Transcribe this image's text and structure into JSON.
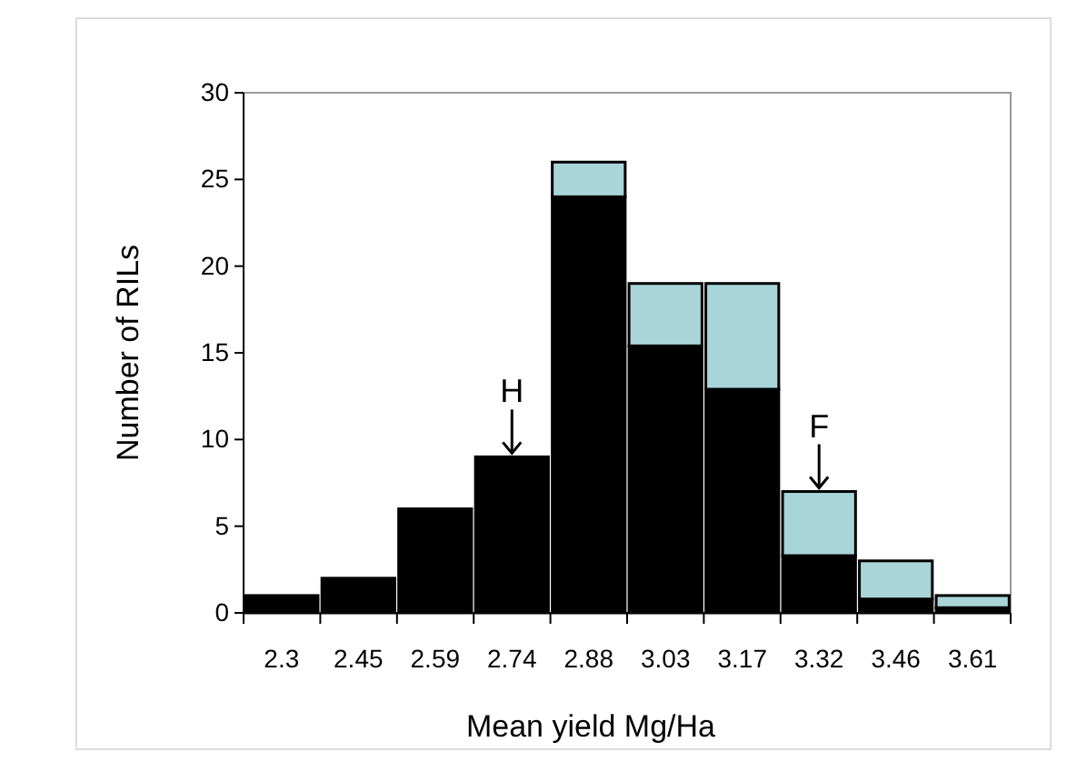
{
  "chart_data": {
    "type": "bar",
    "xlabel": "Mean yield Mg/Ha",
    "ylabel": "Number of RILs",
    "categories": [
      "2.3",
      "2.45",
      "2.59",
      "2.74",
      "2.88",
      "3.03",
      "3.17",
      "3.32",
      "3.46",
      "3.61"
    ],
    "stacked": true,
    "series": [
      {
        "color": "#000000",
        "values": [
          1,
          2,
          6,
          9,
          24,
          15.4,
          12.9,
          3.3,
          0.8,
          0.3
        ]
      },
      {
        "color": "#a9d4d8",
        "values": [
          null,
          null,
          null,
          null,
          2,
          3.6,
          6.1,
          3.7,
          2.2,
          0.7
        ]
      }
    ],
    "ylim": [
      0,
      30
    ],
    "yticks": [
      0,
      5,
      10,
      15,
      20,
      25,
      30
    ],
    "grid": false,
    "annotations": [
      {
        "text": "H",
        "x": "2.74",
        "y": 9
      },
      {
        "text": "F",
        "x": "3.32",
        "y": 7
      }
    ]
  }
}
